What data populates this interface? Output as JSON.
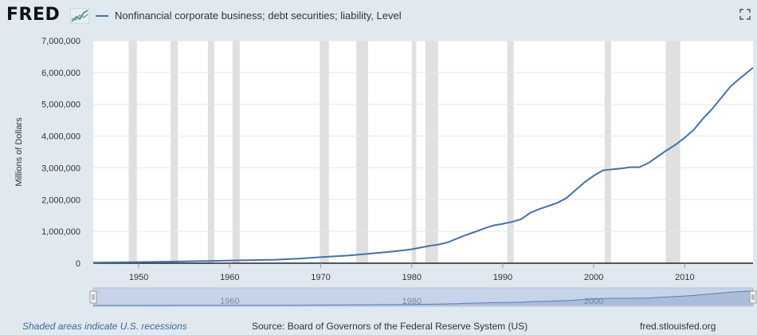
{
  "header": {
    "logo_text": "FRED",
    "series_title": "Nonfinancial corporate business; debt securities; liability, Level"
  },
  "footer": {
    "recession_note": "Shaded areas indicate U.S. recessions",
    "source": "Source: Board of Governors of the Federal Reserve System (US)",
    "url": "fred.stlouisfed.org"
  },
  "colors": {
    "line": "#4572a7",
    "recession": "#e0e0e0",
    "background": "#e1e9f0",
    "navigator_fill": "#c6d3e8"
  },
  "icons": {
    "logo": "fred-chart-icon",
    "fullscreen": "fullscreen-icon"
  },
  "chart_data": {
    "type": "line",
    "title": "Nonfinancial corporate business; debt securities; liability, Level",
    "ylabel": "Millions of Dollars",
    "xlabel": "",
    "xlim": [
      1945,
      2017.5
    ],
    "ylim": [
      0,
      7000000
    ],
    "yticks": [
      0,
      1000000,
      2000000,
      3000000,
      4000000,
      5000000,
      6000000,
      7000000
    ],
    "ytick_labels": [
      "0",
      "1,000,000",
      "2,000,000",
      "3,000,000",
      "4,000,000",
      "5,000,000",
      "6,000,000",
      "7,000,000"
    ],
    "xticks": [
      1950,
      1960,
      1970,
      1980,
      1990,
      2000,
      2010
    ],
    "xtick_labels": [
      "1950",
      "1960",
      "1970",
      "1980",
      "1990",
      "2000",
      "2010"
    ],
    "navigator_ticks": [
      1960,
      1980,
      2000
    ],
    "navigator_tick_labels": [
      "1960",
      "1980",
      "2000"
    ],
    "grid": true,
    "recessions": [
      [
        1948.9,
        1949.8
      ],
      [
        1953.5,
        1954.3
      ],
      [
        1957.6,
        1958.3
      ],
      [
        1960.3,
        1961.1
      ],
      [
        1969.9,
        1970.9
      ],
      [
        1973.9,
        1975.2
      ],
      [
        1980.0,
        1980.5
      ],
      [
        1981.5,
        1982.9
      ],
      [
        1990.5,
        1991.2
      ],
      [
        2001.2,
        2001.9
      ],
      [
        2007.9,
        2009.5
      ]
    ],
    "series": [
      {
        "x": [
          1945,
          1950,
          1955,
          1960,
          1965,
          1968,
          1970,
          1973,
          1975,
          1978,
          1980,
          1982,
          1983,
          1984,
          1985,
          1986,
          1987,
          1988,
          1989,
          1990,
          1991,
          1992,
          1993,
          1994,
          1995,
          1996,
          1997,
          1998,
          1999,
          2000,
          2001,
          2002,
          2003,
          2004,
          2005,
          2006,
          2007,
          2008,
          2009,
          2010,
          2011,
          2012,
          2013,
          2014,
          2015,
          2016,
          2017.5
        ],
        "y": [
          20000,
          35000,
          55000,
          85000,
          110000,
          150000,
          190000,
          240000,
          290000,
          370000,
          440000,
          550000,
          590000,
          660000,
          780000,
          890000,
          990000,
          1100000,
          1190000,
          1240000,
          1300000,
          1380000,
          1580000,
          1700000,
          1800000,
          1900000,
          2050000,
          2300000,
          2550000,
          2750000,
          2920000,
          2950000,
          2980000,
          3020000,
          3020000,
          3150000,
          3350000,
          3550000,
          3730000,
          3950000,
          4200000,
          4550000,
          4850000,
          5200000,
          5550000,
          5800000,
          6150000
        ]
      }
    ]
  }
}
